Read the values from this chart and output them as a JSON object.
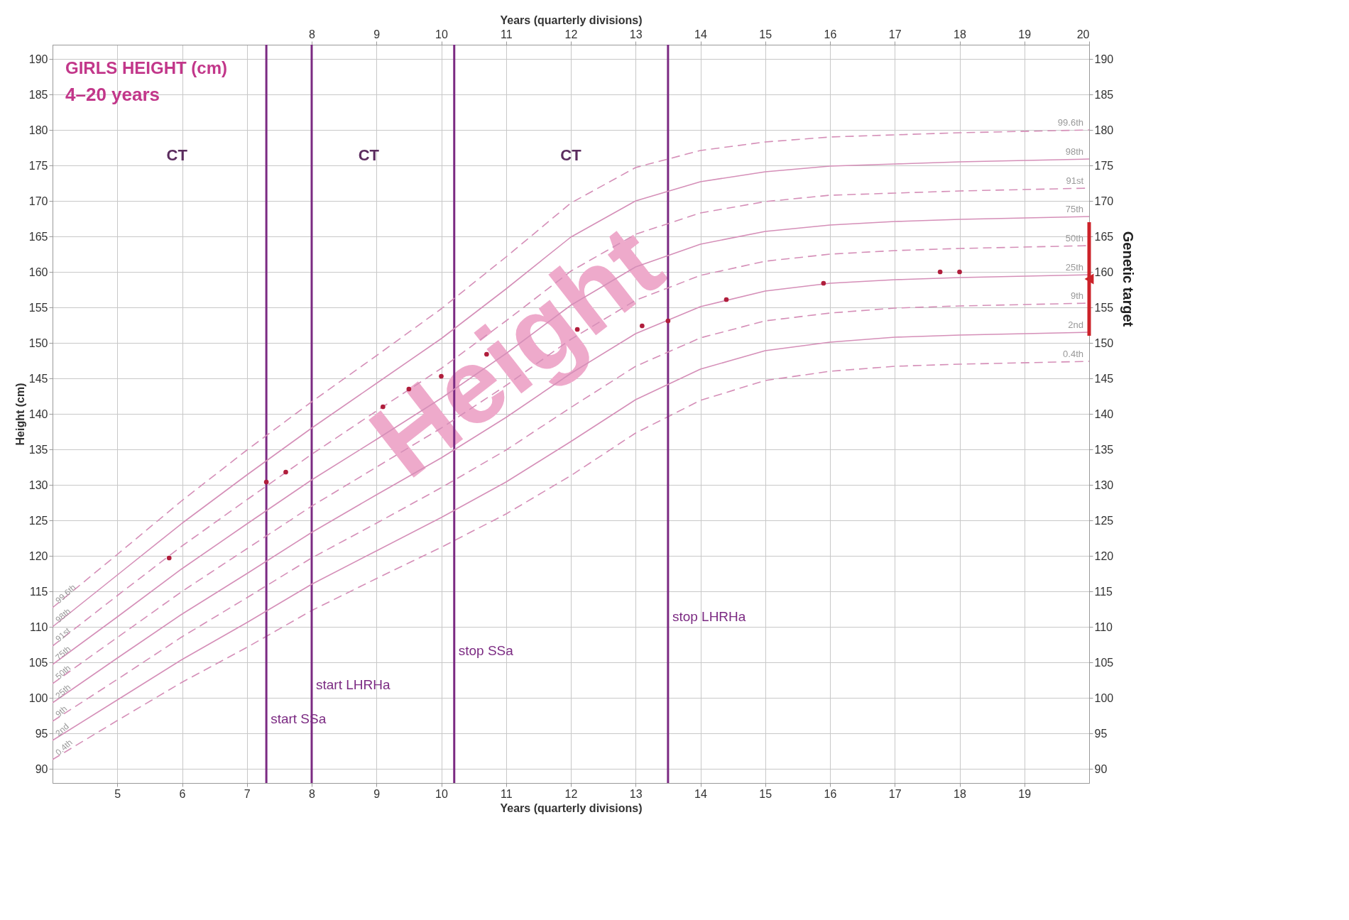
{
  "chart_data": {
    "type": "line",
    "title": "GIRLS HEIGHT (cm)",
    "subtitle": "4–20 years",
    "xlabel": "Years (quarterly divisions)",
    "x2label": "Years (quarterly divisions)",
    "ylabel": "Height (cm)",
    "xlim": [
      4,
      20
    ],
    "xticks": [
      5,
      6,
      7,
      8,
      9,
      10,
      11,
      12,
      13,
      14,
      15,
      16,
      17,
      18,
      19
    ],
    "x2lim": [
      4,
      20
    ],
    "x2ticks": [
      8,
      9,
      10,
      11,
      12,
      13,
      14,
      15,
      16,
      17,
      18,
      19,
      20
    ],
    "ylim": [
      88,
      192
    ],
    "yticks": [
      90,
      95,
      100,
      105,
      110,
      115,
      120,
      125,
      130,
      135,
      140,
      145,
      150,
      155,
      160,
      165,
      170,
      175,
      180,
      185,
      190
    ],
    "y2lim": [
      88,
      192
    ],
    "y2ticks": [
      90,
      95,
      100,
      105,
      110,
      115,
      120,
      125,
      130,
      135,
      140,
      145,
      150,
      155,
      160,
      165,
      170,
      175,
      180,
      185,
      190
    ],
    "grid": true,
    "x": [
      4,
      5,
      6,
      7,
      8,
      9,
      10,
      11,
      12,
      13,
      14,
      15,
      16,
      17,
      18,
      20
    ],
    "series": [
      {
        "name": "0.4th",
        "color": "#d58fb8",
        "line_style": "dashed",
        "values": [
          91.3,
          96.8,
          102.2,
          107.1,
          112.3,
          116.8,
          121.2,
          125.9,
          131.3,
          137.3,
          141.9,
          144.7,
          146.0,
          146.7,
          147.0,
          147.4
        ]
      },
      {
        "name": "2nd",
        "color": "#d58fb8",
        "line_style": "solid",
        "values": [
          94.0,
          99.7,
          105.4,
          110.6,
          116.0,
          120.7,
          125.4,
          130.4,
          136.1,
          142.0,
          146.3,
          148.9,
          150.1,
          150.8,
          151.1,
          151.5
        ]
      },
      {
        "name": "9th",
        "color": "#d58fb8",
        "line_style": "dashed",
        "values": [
          96.7,
          102.6,
          108.6,
          114.1,
          119.7,
          124.6,
          129.6,
          134.9,
          140.9,
          146.7,
          150.7,
          153.1,
          154.2,
          154.9,
          155.2,
          155.6
        ]
      },
      {
        "name": "25th",
        "color": "#d58fb8",
        "line_style": "solid",
        "values": [
          99.3,
          105.6,
          111.8,
          117.5,
          123.3,
          128.6,
          133.8,
          139.5,
          145.7,
          151.3,
          155.1,
          157.3,
          158.4,
          158.9,
          159.2,
          159.6
        ]
      },
      {
        "name": "50th",
        "color": "#d58fb8",
        "line_style": "dashed",
        "values": [
          102.0,
          108.5,
          115.0,
          121.0,
          127.0,
          132.5,
          138.0,
          144.0,
          150.5,
          156.0,
          159.5,
          161.5,
          162.5,
          163.0,
          163.3,
          163.7
        ]
      },
      {
        "name": "75th",
        "color": "#d58fb8",
        "line_style": "solid",
        "values": [
          104.7,
          111.4,
          118.2,
          124.5,
          130.7,
          136.4,
          142.2,
          148.5,
          155.3,
          160.7,
          163.9,
          165.7,
          166.6,
          167.1,
          167.4,
          167.8
        ]
      },
      {
        "name": "91st",
        "color": "#d58fb8",
        "line_style": "dashed",
        "values": [
          107.3,
          114.4,
          121.4,
          127.9,
          134.3,
          140.4,
          146.4,
          153.1,
          160.1,
          165.3,
          168.3,
          169.9,
          170.8,
          171.1,
          171.4,
          171.8
        ]
      },
      {
        "name": "98th",
        "color": "#d58fb8",
        "line_style": "solid",
        "values": [
          110.0,
          117.3,
          124.6,
          131.4,
          138.0,
          144.3,
          150.6,
          157.6,
          164.9,
          170.0,
          172.7,
          174.1,
          174.9,
          175.2,
          175.5,
          175.9
        ]
      },
      {
        "name": "99.6th",
        "color": "#d58fb8",
        "line_style": "dashed",
        "values": [
          112.7,
          120.2,
          127.8,
          134.9,
          141.7,
          148.2,
          154.8,
          162.1,
          169.7,
          174.7,
          177.1,
          178.3,
          179.0,
          179.3,
          179.6,
          180.0
        ]
      },
      {
        "type": "scatter",
        "color": "#b01e3c",
        "marker": "circle",
        "x": [
          5.8,
          7.3,
          7.6,
          9.1,
          9.5,
          10.0,
          10.7,
          12.1,
          13.1,
          13.5,
          14.4,
          15.9,
          17.7,
          18.0
        ],
        "values": [
          119.7,
          130.4,
          131.8,
          141.0,
          143.5,
          145.3,
          148.4,
          151.9,
          152.4,
          153.1,
          156.1,
          158.4,
          160.0,
          160.0
        ]
      },
      {
        "type": "scatter",
        "name": "Genetic target",
        "color": "#cc2229",
        "marker": "triangle",
        "x": [
          20
        ],
        "values": [
          159
        ],
        "errors": [
          [
            151,
            167
          ]
        ]
      }
    ],
    "ref_lines": [
      {
        "axis": "x",
        "value": 7.3,
        "label": "start SSa",
        "color": "#7b2a82"
      },
      {
        "axis": "x",
        "value": 8.0,
        "label": "start LHRHa",
        "color": "#7b2a82"
      },
      {
        "axis": "x",
        "value": 10.2,
        "label": "stop SSa",
        "color": "#7b2a82"
      },
      {
        "axis": "x",
        "value": 13.5,
        "label": "stop LHRHa",
        "color": "#7b2a82"
      }
    ],
    "annotations": [
      "CT",
      "CT",
      "CT",
      "Height"
    ]
  }
}
